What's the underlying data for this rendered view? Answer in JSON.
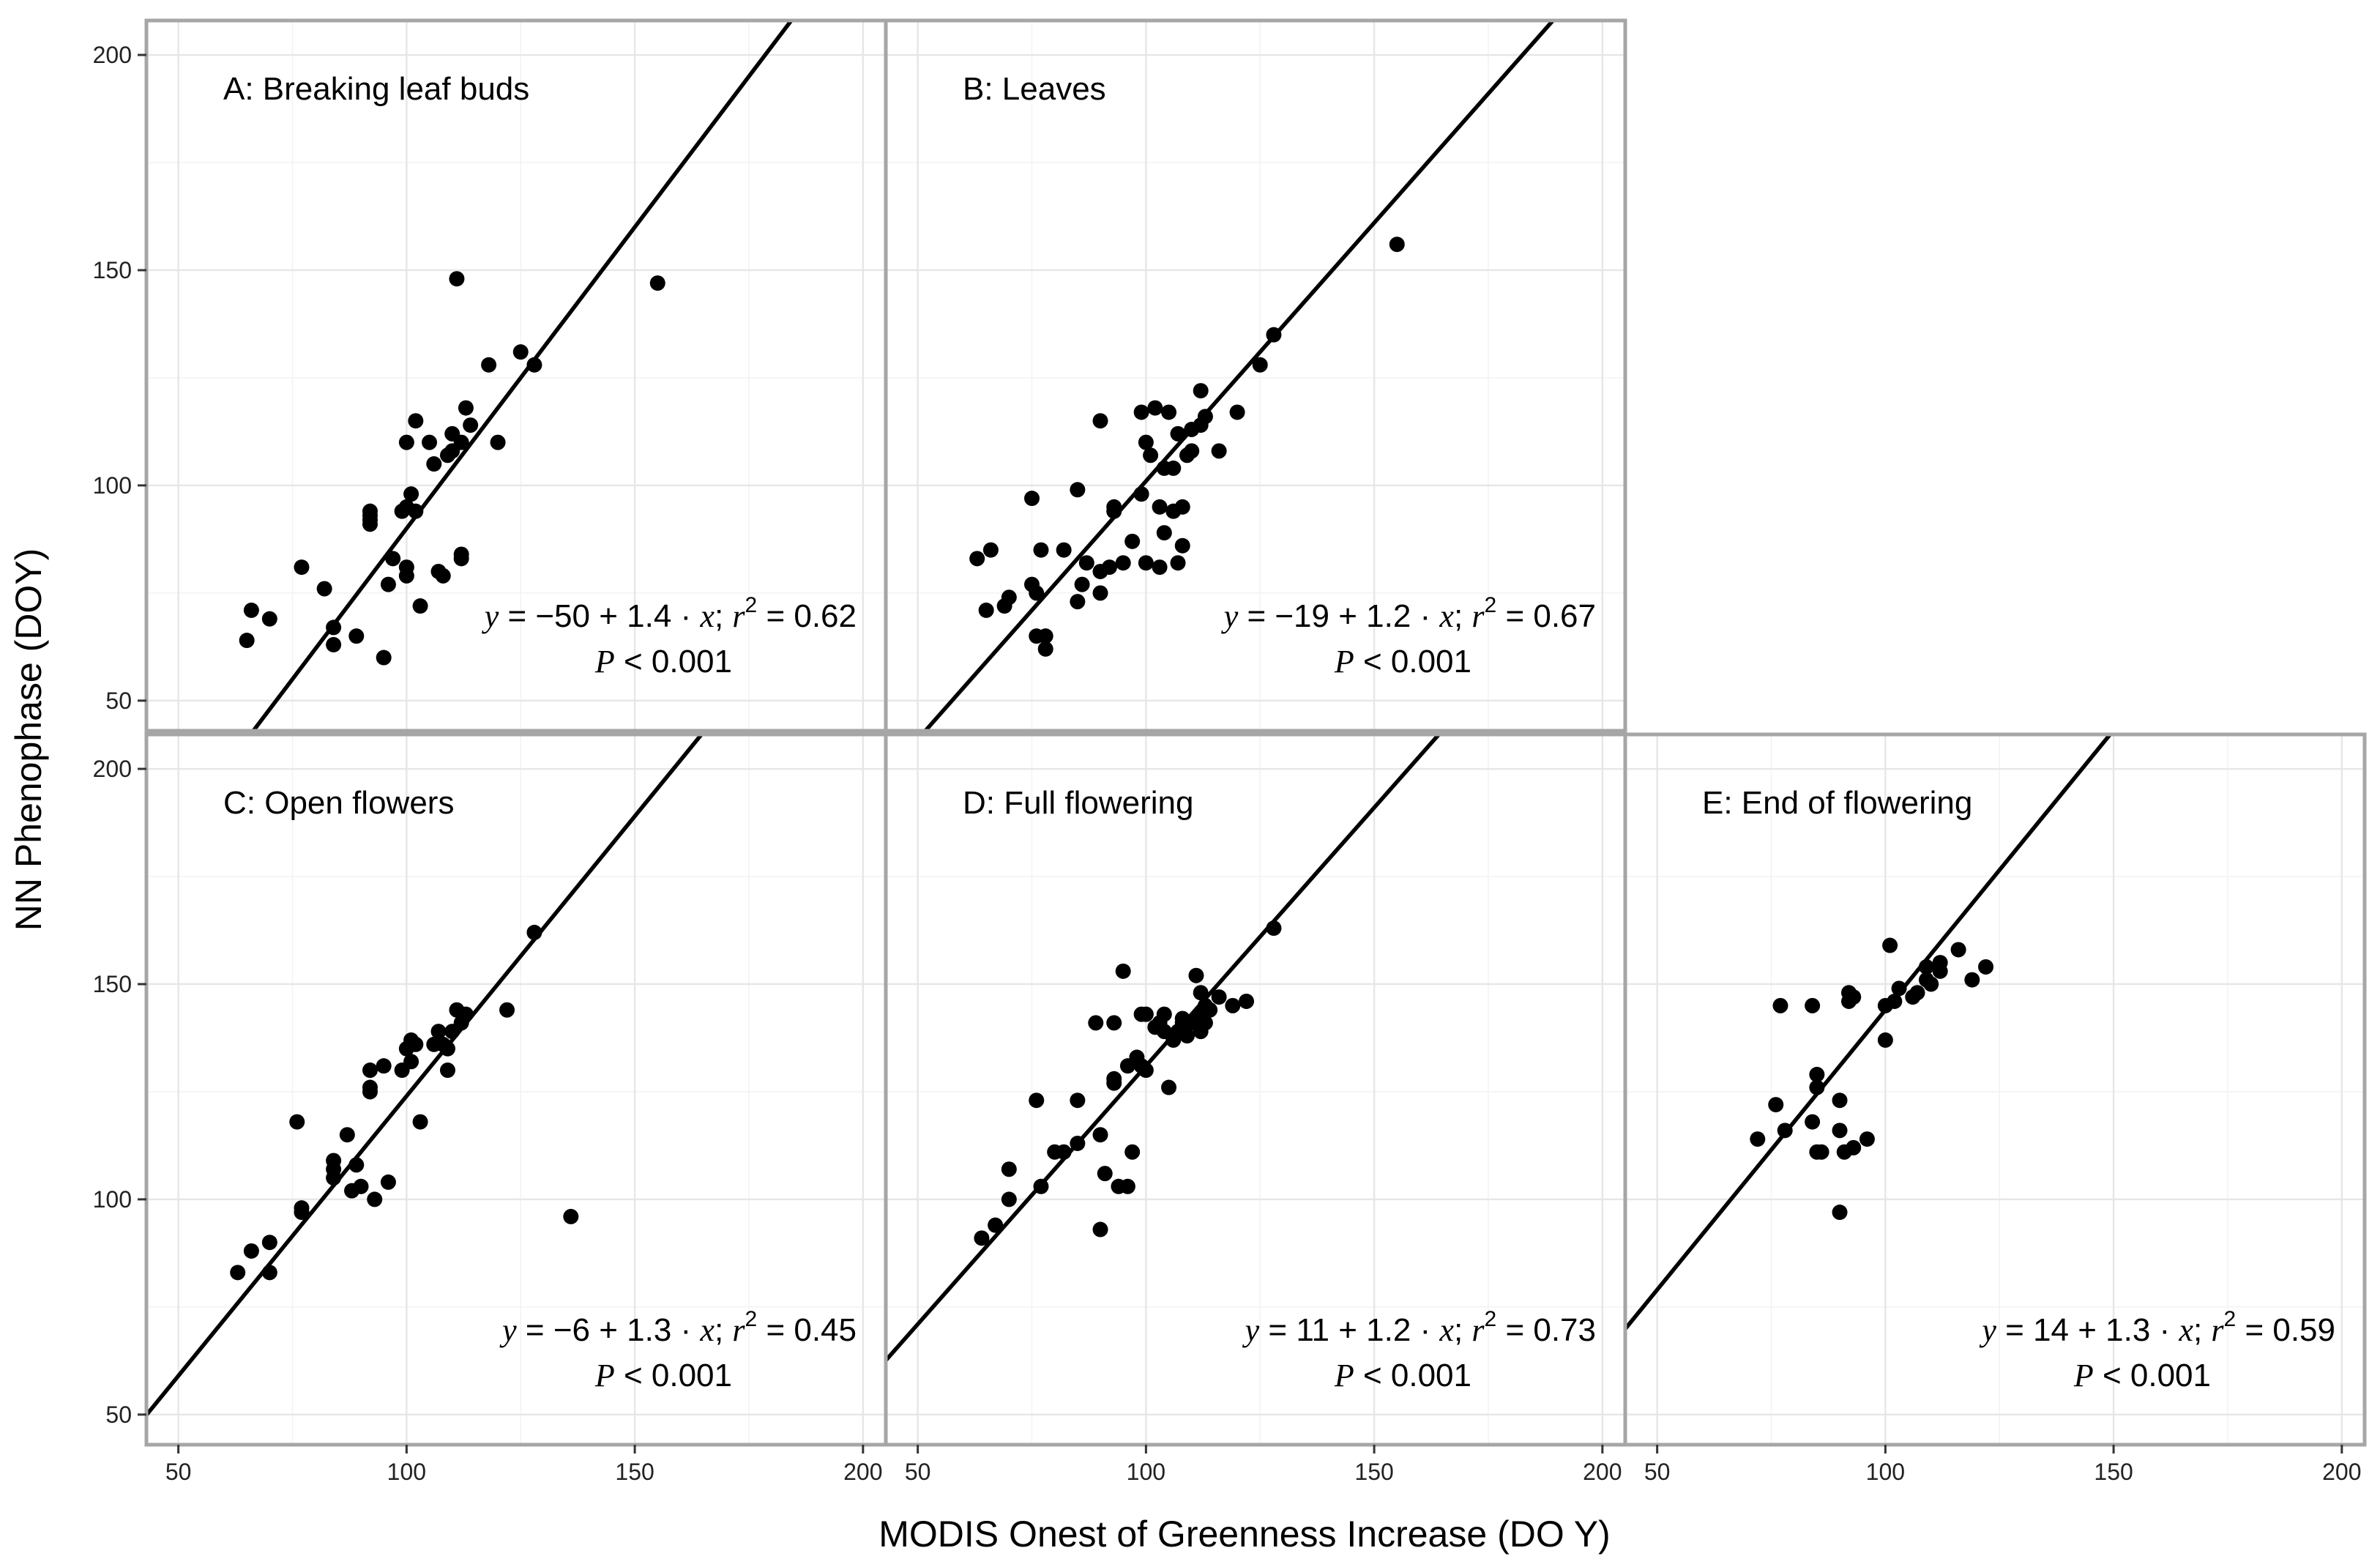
{
  "chart_data": {
    "type": "scatter",
    "xlabel": "MODIS Onest of Greenness Increase (DO Y)",
    "ylabel": "NN Phenophase (DOY)",
    "xlim": [
      43,
      205
    ],
    "ylim": [
      43,
      208
    ],
    "xticks": [
      50,
      100,
      150,
      200
    ],
    "yticks": [
      50,
      100,
      150,
      200
    ],
    "xtick_labels": [
      "50",
      "100",
      "150",
      "200"
    ],
    "ytick_labels": [
      "50",
      "100",
      "150",
      "200"
    ],
    "grid": true,
    "panels": [
      {
        "title": "A: Breaking leaf buds",
        "equation": {
          "y": "y",
          "rhs": " = −50 + 1.4 · ",
          "x": "x",
          "sep": ";  ",
          "r": "r",
          "sup": "2",
          "r2": " = 0.62",
          "p": "P",
          "p_text": " < 0.001"
        },
        "intercept": -50,
        "slope": 1.4,
        "points": [
          [
            65,
            64
          ],
          [
            66,
            71
          ],
          [
            70,
            69
          ],
          [
            77,
            81
          ],
          [
            82,
            76
          ],
          [
            84,
            67
          ],
          [
            84,
            63
          ],
          [
            89,
            65
          ],
          [
            92,
            91
          ],
          [
            92,
            92
          ],
          [
            92,
            93
          ],
          [
            92,
            94
          ],
          [
            95,
            60
          ],
          [
            96,
            77
          ],
          [
            97,
            83
          ],
          [
            99,
            94
          ],
          [
            100,
            95
          ],
          [
            100,
            79
          ],
          [
            100,
            81
          ],
          [
            100,
            110
          ],
          [
            101,
            98
          ],
          [
            102,
            94
          ],
          [
            102,
            115
          ],
          [
            103,
            72
          ],
          [
            105,
            110
          ],
          [
            106,
            105
          ],
          [
            107,
            80
          ],
          [
            108,
            79
          ],
          [
            109,
            107
          ],
          [
            110,
            112
          ],
          [
            110,
            108
          ],
          [
            111,
            148
          ],
          [
            112,
            110
          ],
          [
            112,
            83
          ],
          [
            112,
            84
          ],
          [
            113,
            118
          ],
          [
            114,
            114
          ],
          [
            118,
            128
          ],
          [
            120,
            110
          ],
          [
            125,
            131
          ],
          [
            128,
            128
          ],
          [
            155,
            147
          ]
        ]
      },
      {
        "title": "B: Leaves",
        "equation": {
          "y": "y",
          "rhs": " = −19 + 1.2 · ",
          "x": "x",
          "sep": ";  ",
          "r": "r",
          "sup": "2",
          "r2": " = 0.67",
          "p": "P",
          "p_text": " < 0.001"
        },
        "intercept": -19,
        "slope": 1.2,
        "points": [
          [
            63,
            83
          ],
          [
            65,
            71
          ],
          [
            66,
            85
          ],
          [
            69,
            72
          ],
          [
            70,
            74
          ],
          [
            75,
            97
          ],
          [
            75,
            77
          ],
          [
            76,
            65
          ],
          [
            76,
            75
          ],
          [
            77,
            85
          ],
          [
            78,
            62
          ],
          [
            78,
            65
          ],
          [
            82,
            85
          ],
          [
            85,
            99
          ],
          [
            85,
            73
          ],
          [
            86,
            77
          ],
          [
            87,
            82
          ],
          [
            90,
            115
          ],
          [
            90,
            80
          ],
          [
            90,
            75
          ],
          [
            92,
            81
          ],
          [
            93,
            95
          ],
          [
            93,
            94
          ],
          [
            95,
            82
          ],
          [
            97,
            87
          ],
          [
            99,
            98
          ],
          [
            99,
            117
          ],
          [
            100,
            110
          ],
          [
            100,
            82
          ],
          [
            101,
            107
          ],
          [
            102,
            118
          ],
          [
            103,
            95
          ],
          [
            103,
            81
          ],
          [
            104,
            104
          ],
          [
            104,
            89
          ],
          [
            105,
            117
          ],
          [
            106,
            94
          ],
          [
            106,
            104
          ],
          [
            107,
            112
          ],
          [
            107,
            82
          ],
          [
            108,
            86
          ],
          [
            108,
            95
          ],
          [
            109,
            107
          ],
          [
            110,
            113
          ],
          [
            110,
            108
          ],
          [
            112,
            114
          ],
          [
            112,
            122
          ],
          [
            113,
            116
          ],
          [
            116,
            108
          ],
          [
            120,
            117
          ],
          [
            125,
            128
          ],
          [
            128,
            135
          ],
          [
            155,
            156
          ]
        ]
      },
      {
        "title": "C: Open flowers",
        "equation": {
          "y": "y",
          "rhs": " = −6 + 1.3 · ",
          "x": "x",
          "sep": ";  ",
          "r": "r",
          "sup": "2",
          "r2": " = 0.45",
          "p": "P",
          "p_text": " < 0.001"
        },
        "intercept": -6,
        "slope": 1.3,
        "points": [
          [
            63,
            83
          ],
          [
            66,
            88
          ],
          [
            70,
            90
          ],
          [
            70,
            83
          ],
          [
            76,
            118
          ],
          [
            77,
            98
          ],
          [
            77,
            97
          ],
          [
            84,
            109
          ],
          [
            84,
            107
          ],
          [
            84,
            105
          ],
          [
            87,
            115
          ],
          [
            88,
            102
          ],
          [
            89,
            108
          ],
          [
            90,
            103
          ],
          [
            92,
            130
          ],
          [
            92,
            126
          ],
          [
            92,
            125
          ],
          [
            93,
            100
          ],
          [
            95,
            131
          ],
          [
            96,
            104
          ],
          [
            99,
            130
          ],
          [
            100,
            135
          ],
          [
            101,
            132
          ],
          [
            101,
            137
          ],
          [
            102,
            136
          ],
          [
            103,
            118
          ],
          [
            106,
            136
          ],
          [
            107,
            139
          ],
          [
            108,
            136
          ],
          [
            109,
            130
          ],
          [
            109,
            135
          ],
          [
            110,
            139
          ],
          [
            111,
            144
          ],
          [
            112,
            141
          ],
          [
            113,
            143
          ],
          [
            122,
            144
          ],
          [
            128,
            162
          ],
          [
            136,
            96
          ]
        ]
      },
      {
        "title": "D: Full flowering",
        "equation": {
          "y": "y",
          "rhs": " = 11 + 1.2 · ",
          "x": "x",
          "sep": ";  ",
          "r": "r",
          "sup": "2",
          "r2": " = 0.73",
          "p": "P",
          "p_text": " < 0.001"
        },
        "intercept": 11,
        "slope": 1.2,
        "points": [
          [
            64,
            91
          ],
          [
            67,
            94
          ],
          [
            70,
            100
          ],
          [
            70,
            107
          ],
          [
            76,
            123
          ],
          [
            77,
            103
          ],
          [
            80,
            111
          ],
          [
            82,
            111
          ],
          [
            85,
            113
          ],
          [
            85,
            123
          ],
          [
            89,
            141
          ],
          [
            90,
            115
          ],
          [
            90,
            93
          ],
          [
            91,
            106
          ],
          [
            93,
            141
          ],
          [
            93,
            128
          ],
          [
            93,
            127
          ],
          [
            94,
            103
          ],
          [
            95,
            153
          ],
          [
            96,
            131
          ],
          [
            96,
            103
          ],
          [
            97,
            111
          ],
          [
            98,
            133
          ],
          [
            99,
            143
          ],
          [
            99,
            131
          ],
          [
            100,
            130
          ],
          [
            100,
            143
          ],
          [
            102,
            140
          ],
          [
            103,
            141
          ],
          [
            104,
            139
          ],
          [
            104,
            143
          ],
          [
            105,
            126
          ],
          [
            106,
            137
          ],
          [
            107,
            139
          ],
          [
            108,
            141
          ],
          [
            108,
            142
          ],
          [
            109,
            138
          ],
          [
            110,
            141
          ],
          [
            111,
            142
          ],
          [
            111,
            152
          ],
          [
            112,
            148
          ],
          [
            112,
            143
          ],
          [
            112,
            139
          ],
          [
            113,
            145
          ],
          [
            113,
            141
          ],
          [
            114,
            144
          ],
          [
            116,
            147
          ],
          [
            119,
            145
          ],
          [
            122,
            146
          ],
          [
            128,
            163
          ]
        ]
      },
      {
        "title": "E: End of flowering",
        "equation": {
          "y": "y",
          "rhs": " = 14 + 1.3 · ",
          "x": "x",
          "sep": ";  ",
          "r": "r",
          "sup": "2",
          "r2": " = 0.59",
          "p": "P",
          "p_text": " < 0.001"
        },
        "intercept": 14,
        "slope": 1.3,
        "points": [
          [
            72,
            114
          ],
          [
            76,
            122
          ],
          [
            77,
            145
          ],
          [
            78,
            116
          ],
          [
            84,
            145
          ],
          [
            84,
            118
          ],
          [
            85,
            129
          ],
          [
            85,
            126
          ],
          [
            85,
            111
          ],
          [
            86,
            111
          ],
          [
            90,
            123
          ],
          [
            90,
            116
          ],
          [
            90,
            97
          ],
          [
            91,
            111
          ],
          [
            92,
            146
          ],
          [
            92,
            148
          ],
          [
            93,
            112
          ],
          [
            93,
            147
          ],
          [
            96,
            114
          ],
          [
            100,
            137
          ],
          [
            100,
            145
          ],
          [
            101,
            159
          ],
          [
            102,
            146
          ],
          [
            103,
            149
          ],
          [
            106,
            147
          ],
          [
            107,
            148
          ],
          [
            109,
            151
          ],
          [
            109,
            154
          ],
          [
            110,
            150
          ],
          [
            112,
            153
          ],
          [
            112,
            155
          ],
          [
            116,
            158
          ],
          [
            119,
            151
          ],
          [
            122,
            154
          ]
        ]
      }
    ]
  }
}
